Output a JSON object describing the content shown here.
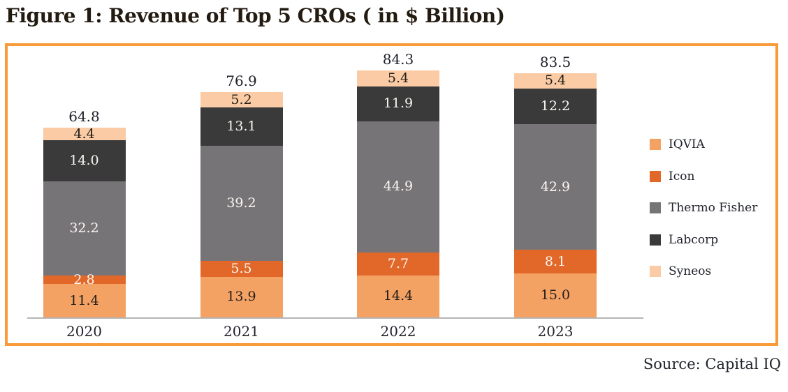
{
  "figure": {
    "title": "Figure 1: Revenue of Top 5 CROs ( in $ Billion)",
    "source": "Source: Capital IQ"
  },
  "colors": {
    "frame_border": "#F89B38",
    "axis_line": "#b5b5b5",
    "title_text": "#231a10",
    "label_text": "#20202a"
  },
  "chart_data": {
    "type": "bar",
    "subtype": "stacked-vertical",
    "title": "Revenue of Top 5 CROs ( in $ Billion)",
    "categories": [
      "2020",
      "2021",
      "2022",
      "2023"
    ],
    "series": [
      {
        "name": "IQVIA",
        "color": "#F4A164",
        "value_text_color": "#241f1a",
        "values": [
          11.4,
          13.9,
          14.4,
          15.0
        ]
      },
      {
        "name": "Icon",
        "color": "#E2682A",
        "value_text_color": "#faf7f2",
        "values": [
          2.8,
          5.5,
          7.7,
          8.1
        ]
      },
      {
        "name": "Thermo Fisher",
        "color": "#767476",
        "value_text_color": "#faf7f2",
        "values": [
          32.2,
          39.2,
          44.9,
          42.9
        ]
      },
      {
        "name": "Labcorp",
        "color": "#3A3A3A",
        "value_text_color": "#faf7f2",
        "values": [
          14.0,
          13.1,
          11.9,
          12.2
        ]
      },
      {
        "name": "Syneos",
        "color": "#FACBA4",
        "value_text_color": "#241f1a",
        "values": [
          4.4,
          5.2,
          5.4,
          5.4
        ]
      }
    ],
    "totals": [
      64.8,
      76.9,
      84.3,
      83.5
    ],
    "value_labels_shown": true,
    "total_labels_shown": true,
    "value_axis_visible": false,
    "gridlines": false,
    "legend_position": "right",
    "legend_order": [
      "IQVIA",
      "Icon",
      "Thermo Fisher",
      "Labcorp",
      "Syneos"
    ],
    "xlabel": "",
    "ylabel": "",
    "approx_value_range": [
      0,
      85
    ]
  }
}
